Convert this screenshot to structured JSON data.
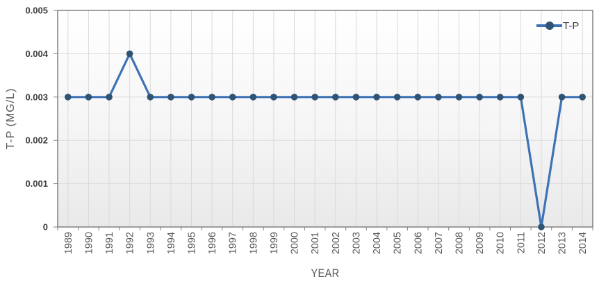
{
  "chart_data": {
    "type": "line",
    "title": "",
    "xlabel": "YEAR",
    "ylabel": "T-P (MG/L)",
    "categories": [
      "1989",
      "1990",
      "1991",
      "1992",
      "1993",
      "1994",
      "1995",
      "1996",
      "1997",
      "1998",
      "1999",
      "2000",
      "2001",
      "2002",
      "2003",
      "2004",
      "2005",
      "2006",
      "2007",
      "2008",
      "2009",
      "2010",
      "2011",
      "2012",
      "2013",
      "2014"
    ],
    "series": [
      {
        "name": "T-P",
        "values": [
          0.003,
          0.003,
          0.003,
          0.004,
          0.003,
          0.003,
          0.003,
          0.003,
          0.003,
          0.003,
          0.003,
          0.003,
          0.003,
          0.003,
          0.003,
          0.003,
          0.003,
          0.003,
          0.003,
          0.003,
          0.003,
          0.003,
          0.003,
          0,
          0.003,
          0.003
        ]
      }
    ],
    "ylim": [
      0,
      0.005
    ],
    "yticks": [
      0,
      0.001,
      0.002,
      0.003,
      0.004,
      0.005
    ],
    "ytick_labels": [
      "0",
      "0.001",
      "0.002",
      "0.003",
      "0.004",
      "0.005"
    ],
    "grid": "horizontal and vertical major gridlines on",
    "legend_position": "top-right inside plot",
    "colors": {
      "line": "#3d72b4",
      "marker": "#2f5373",
      "gridline": "#d9d9d9",
      "plot_border": "#6e6e6e",
      "tick": "#808080",
      "ytick_label": "#3f3f3f",
      "xtick_label": "#595959",
      "axis_title": "#595959",
      "plot_bg_top": "#ffffff",
      "plot_bg_bottom": "#e9e9e9"
    }
  }
}
